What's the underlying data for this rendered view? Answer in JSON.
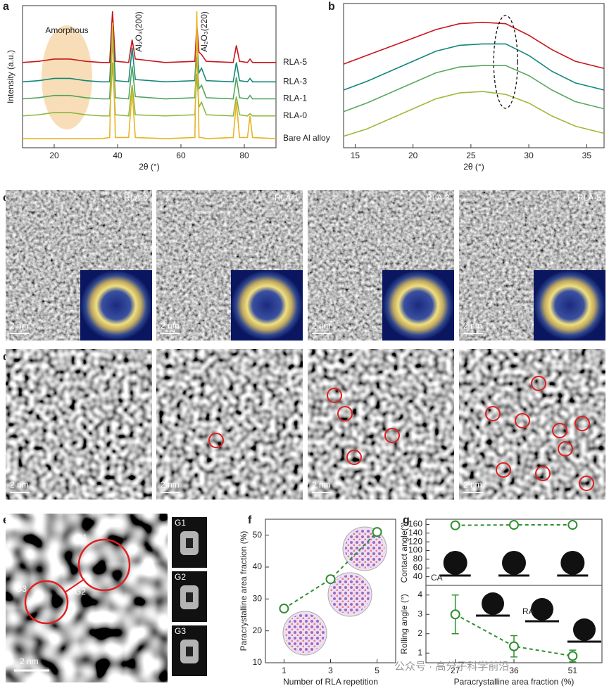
{
  "panel_labels": [
    "a",
    "b",
    "c",
    "d",
    "e",
    "f",
    "g"
  ],
  "micrographs": {
    "c": {
      "labels": [
        "RLA-0",
        "RLA-1",
        "RLA-3",
        "RLA-5"
      ],
      "scale_bar": "2 nm"
    },
    "d": {
      "scale_bar": "2 nm"
    },
    "e": {
      "labels": [
        "G1",
        "G2",
        "G3"
      ],
      "insets": [
        "G1",
        "G2",
        "G3"
      ],
      "scale_bar": "2 nm"
    }
  },
  "watermark": "公众号 · 高分子科学前沿",
  "chart_data": [
    {
      "type": "line",
      "xlabel": "2θ (°)",
      "ylabel": "Intensity (a.u.)",
      "annotations": [
        "Amorphous",
        "Al₂O₃(200)",
        "Al₂O₃(220)"
      ],
      "x": [
        10,
        15,
        20,
        25,
        30,
        35,
        37.5,
        38.4,
        39.3,
        43.5,
        44.6,
        45.6,
        55,
        64.4,
        65,
        65.7,
        66.5,
        68,
        76.5,
        77.5,
        78.5,
        81,
        81.8,
        82.6,
        90
      ],
      "xlim": [
        10,
        90
      ],
      "xticks": [
        20,
        40,
        60,
        80
      ],
      "ylim": [
        0,
        125
      ],
      "series": [
        {
          "name": "RLA-5",
          "color": "#c8161c",
          "values": [
            75,
            76,
            78,
            78,
            76,
            75,
            75,
            120,
            76,
            75,
            95,
            78,
            75,
            76,
            108,
            84,
            82,
            76,
            75,
            90,
            76,
            75,
            78,
            75,
            75
          ]
        },
        {
          "name": "RLA-3",
          "color": "#13877a",
          "values": [
            58,
            59,
            61,
            61,
            59,
            58,
            58,
            110,
            59,
            58,
            88,
            60,
            58,
            59,
            95,
            66,
            70,
            59,
            58,
            75,
            59,
            58,
            61,
            58,
            58
          ]
        },
        {
          "name": "RLA-1",
          "color": "#4ea55a",
          "values": [
            43,
            44,
            46,
            46,
            44,
            43,
            43,
            95,
            44,
            43,
            72,
            45,
            43,
            44,
            80,
            52,
            55,
            44,
            43,
            62,
            44,
            43,
            46,
            43,
            43
          ]
        },
        {
          "name": "RLA-0",
          "color": "#8ab83c",
          "values": [
            28,
            29,
            31,
            31,
            29,
            28,
            28,
            75,
            29,
            28,
            55,
            29,
            28,
            29,
            65,
            36,
            40,
            29,
            28,
            45,
            29,
            28,
            30,
            28,
            28
          ]
        },
        {
          "name": "Bare Al alloy",
          "color": "#e8b424",
          "values": [
            8,
            8,
            8,
            8,
            8,
            8,
            9,
            110,
            9,
            9,
            50,
            9,
            8,
            9,
            120,
            9,
            9,
            8,
            9,
            40,
            9,
            9,
            28,
            9,
            8
          ]
        }
      ]
    },
    {
      "type": "line",
      "xlabel": "2θ (°)",
      "x": [
        14,
        16,
        18,
        20,
        22,
        24,
        26,
        28,
        30,
        32,
        34,
        36.5
      ],
      "xlim": [
        14,
        36.5
      ],
      "xticks": [
        15,
        20,
        25,
        30,
        35
      ],
      "ylim": [
        0,
        100
      ],
      "series": [
        {
          "color": "#c8161c",
          "values": [
            58,
            64,
            70,
            76,
            82,
            86,
            87,
            86,
            78,
            68,
            60,
            55
          ]
        },
        {
          "color": "#13877a",
          "values": [
            40,
            46,
            53,
            60,
            67,
            71,
            72,
            72,
            64,
            53,
            45,
            40
          ]
        },
        {
          "color": "#5aa860",
          "values": [
            25,
            31,
            38,
            45,
            52,
            56,
            57,
            57,
            50,
            40,
            32,
            27
          ]
        },
        {
          "color": "#9bbb3a",
          "values": [
            8,
            13,
            20,
            27,
            34,
            38,
            39,
            37,
            31,
            22,
            15,
            10
          ]
        }
      ]
    },
    {
      "type": "line",
      "markers": true,
      "linestyle": "dashed",
      "xlabel": "Number of RLA repetition",
      "ylabel": "Paracrystalline area fraction (%)",
      "x": [
        1,
        3,
        5
      ],
      "xlim": [
        0.2,
        5.8
      ],
      "xticks": [
        1,
        3,
        5
      ],
      "ylim": [
        10,
        55
      ],
      "yticks": [
        10,
        20,
        30,
        40,
        50
      ],
      "series": [
        {
          "color": "#2f8f2f",
          "values": [
            27,
            36.2,
            51
          ]
        }
      ]
    },
    {
      "type": "errorbar",
      "linestyle": "dashed",
      "ylabel": "Contact angle(°)",
      "ylim": [
        20,
        172
      ],
      "yticks": [
        40,
        60,
        80,
        100,
        120,
        140,
        160
      ],
      "series": [
        {
          "color": "#2f8f2f",
          "values": [
            158,
            159,
            159
          ],
          "errors": [
            3,
            1.5,
            1.5
          ]
        }
      ]
    },
    {
      "type": "errorbar",
      "linestyle": "dashed",
      "ylabel": "Rolling angle (°)",
      "xlabel": "Paracrystalline area fraction (%)",
      "annotations": [
        "CA",
        "RA"
      ],
      "categories": [
        "27",
        "36",
        "51"
      ],
      "ylim": [
        0.5,
        4.5
      ],
      "yticks": [
        1,
        2,
        3,
        4
      ],
      "series": [
        {
          "color": "#2f8f2f",
          "values": [
            3,
            1.35,
            0.85
          ],
          "errors": [
            1,
            0.55,
            0.3
          ]
        }
      ]
    }
  ]
}
